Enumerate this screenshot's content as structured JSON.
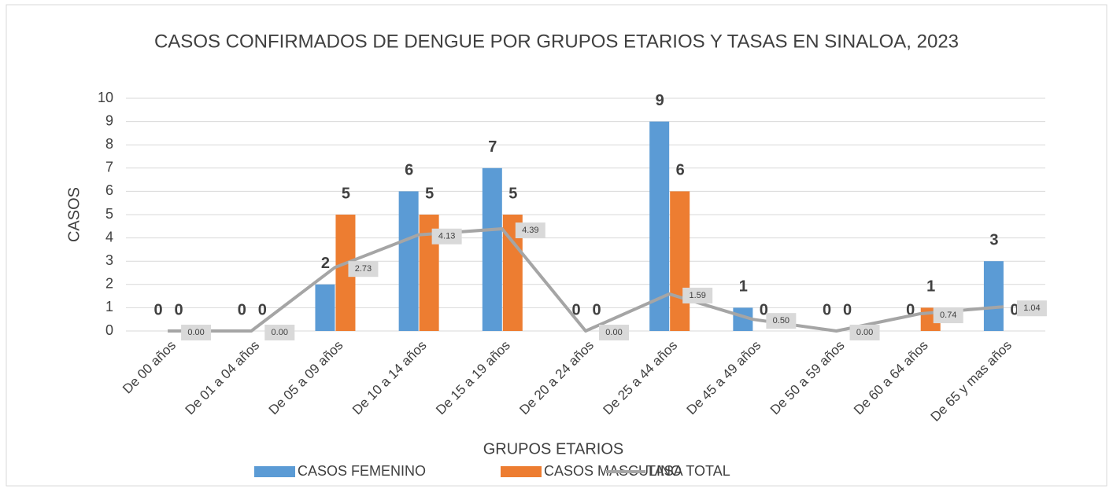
{
  "chart_data": {
    "type": "bar_line",
    "title": "CASOS CONFIRMADOS DE DENGUE POR GRUPOS ETARIOS Y TASAS EN SINALOA, 2023",
    "x_label": "GRUPOS ETARIOS",
    "y_label": "CASOS",
    "categories": [
      "De 00 años",
      "De 01 a 04 años",
      "De 05 a 09 años",
      "De 10 a 14 años",
      "De 15 a 19 años",
      "De 20 a 24 años",
      "De 25 a 44 años",
      "De 45 a 49 años",
      "De 50 a 59 años",
      "De 60 a 64 años",
      "De 65 y mas años"
    ],
    "series": [
      {
        "name": "CASOS FEMENINO",
        "type": "bar",
        "color": "#5b9bd5",
        "values": [
          0,
          0,
          2,
          6,
          7,
          0,
          9,
          1,
          0,
          0,
          3
        ]
      },
      {
        "name": "CASOS MASCULINO",
        "type": "bar",
        "color": "#ed7d31",
        "values": [
          0,
          0,
          5,
          5,
          5,
          0,
          6,
          0,
          0,
          1,
          0
        ]
      },
      {
        "name": "TASA TOTAL",
        "type": "line",
        "color": "#a5a5a5",
        "values": [
          0,
          0,
          2.73,
          4.13,
          4.39,
          0,
          1.59,
          0.5,
          0,
          0.74,
          1.04
        ],
        "value_labels": [
          "0.00",
          "0.00",
          "2.73",
          "4.13",
          "4.39",
          "0.00",
          "1.59",
          "0.50",
          "0.00",
          "0.74",
          "1.04"
        ]
      }
    ],
    "ylim": [
      0,
      10
    ],
    "yticks": [
      0,
      1,
      2,
      3,
      4,
      5,
      6,
      7,
      8,
      9,
      10
    ],
    "grid": true,
    "legend": "bottom"
  }
}
